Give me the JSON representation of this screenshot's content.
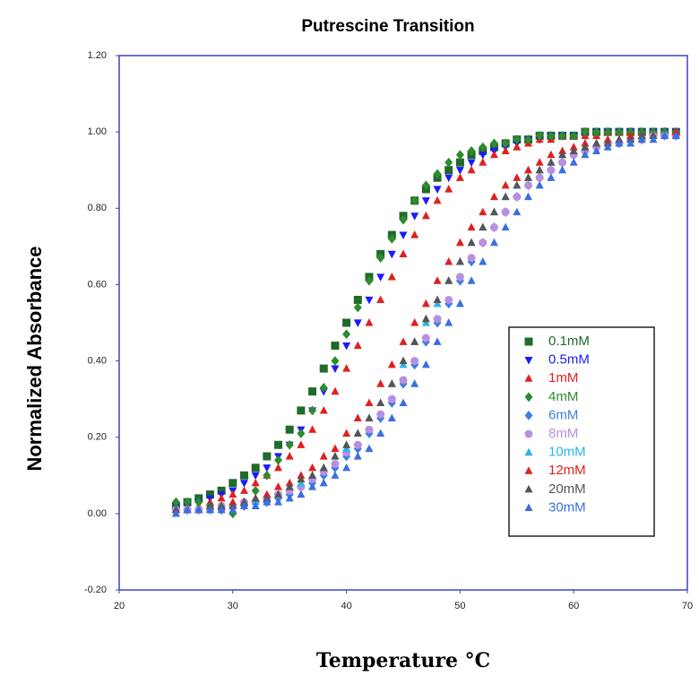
{
  "chart_data": {
    "type": "scatter",
    "title": "Putrescine Transition",
    "x_label": "Temperature °C",
    "y_label": "Normalized Absorbance",
    "xlim": [
      20,
      70
    ],
    "xticks": [
      20,
      30,
      40,
      50,
      60,
      70
    ],
    "ylim": [
      -0.2,
      1.2
    ],
    "yticks": [
      {
        "value": -0.2,
        "label": "-0.20"
      },
      {
        "value": 0,
        "label": "0.00"
      },
      {
        "value": 0.2,
        "label": "0.20"
      },
      {
        "value": 0.4,
        "label": "0.40"
      },
      {
        "value": 0.6,
        "label": "0.60"
      },
      {
        "value": 0.8,
        "label": "0.80"
      },
      {
        "value": 1.0,
        "label": "1.00"
      },
      {
        "value": 1.2,
        "label": "1.20"
      }
    ],
    "legend": "right",
    "x": [
      25,
      26,
      27,
      28,
      29,
      30,
      31,
      32,
      33,
      34,
      35,
      36,
      37,
      38,
      39,
      40,
      41,
      42,
      43,
      44,
      45,
      46,
      47,
      48,
      49,
      50,
      51,
      52,
      53,
      54,
      55,
      56,
      57,
      58,
      59,
      60,
      61,
      62,
      63,
      64,
      65,
      66,
      67,
      68,
      69
    ],
    "series": [
      {
        "name": "0.1mM",
        "color": "#1f6b2a",
        "marker": "square",
        "values": [
          0.02,
          0.03,
          0.04,
          0.05,
          0.06,
          0.08,
          0.1,
          0.12,
          0.15,
          0.18,
          0.22,
          0.27,
          0.32,
          0.38,
          0.44,
          0.5,
          0.56,
          0.62,
          0.68,
          0.73,
          0.78,
          0.82,
          0.85,
          0.88,
          0.9,
          0.92,
          0.94,
          0.95,
          0.96,
          0.97,
          0.98,
          0.98,
          0.99,
          0.99,
          0.99,
          0.99,
          1.0,
          1.0,
          1.0,
          1.0,
          1.0,
          1.0,
          1.0,
          1.0,
          1.0
        ]
      },
      {
        "name": "0.5mM",
        "color": "#1a1aff",
        "marker": "triangle-down",
        "values": [
          0.02,
          0.02,
          0.03,
          0.04,
          0.05,
          0.06,
          0.08,
          0.1,
          0.12,
          0.15,
          0.18,
          0.22,
          0.27,
          0.32,
          0.38,
          0.44,
          0.5,
          0.56,
          0.62,
          0.68,
          0.73,
          0.78,
          0.82,
          0.85,
          0.88,
          0.9,
          0.92,
          0.94,
          0.95,
          0.96,
          0.97,
          0.98,
          0.98,
          0.99,
          0.99,
          0.99,
          0.99,
          1.0,
          1.0,
          1.0,
          1.0,
          1.0,
          1.0,
          1.0,
          1.0
        ]
      },
      {
        "name": "1mM",
        "color": "#e02020",
        "marker": "triangle",
        "values": [
          0.01,
          0.02,
          0.02,
          0.03,
          0.04,
          0.05,
          0.06,
          0.08,
          0.1,
          0.12,
          0.15,
          0.18,
          0.22,
          0.27,
          0.32,
          0.38,
          0.44,
          0.5,
          0.56,
          0.62,
          0.68,
          0.73,
          0.78,
          0.82,
          0.85,
          0.88,
          0.9,
          0.92,
          0.94,
          0.95,
          0.96,
          0.97,
          0.98,
          0.98,
          0.99,
          0.99,
          0.99,
          0.99,
          1.0,
          1.0,
          1.0,
          1.0,
          1.0,
          1.0,
          1.0
        ]
      },
      {
        "name": "4mM",
        "color": "#2e8b2e",
        "marker": "diamond",
        "values": [
          0.03,
          0.03,
          0.03,
          0.02,
          0.01,
          0.0,
          0.03,
          0.06,
          0.1,
          0.14,
          0.18,
          0.21,
          0.27,
          0.33,
          0.4,
          0.47,
          0.54,
          0.61,
          0.67,
          0.72,
          0.77,
          0.82,
          0.86,
          0.89,
          0.92,
          0.94,
          0.95,
          0.96,
          0.97,
          0.97,
          0.98,
          0.98,
          0.99,
          0.99,
          0.99,
          0.99,
          1.0,
          1.0,
          1.0,
          1.0,
          1.0,
          1.0,
          1.0,
          1.0,
          1.0
        ]
      },
      {
        "name": "6mM",
        "color": "#3d7fe0",
        "marker": "diamond",
        "values": [
          0.01,
          0.01,
          0.01,
          0.01,
          0.01,
          0.02,
          0.02,
          0.03,
          0.03,
          0.04,
          0.05,
          0.07,
          0.08,
          0.1,
          0.12,
          0.15,
          0.17,
          0.21,
          0.25,
          0.29,
          0.34,
          0.39,
          0.45,
          0.5,
          0.55,
          0.61,
          0.66,
          0.71,
          0.75,
          0.79,
          0.83,
          0.86,
          0.88,
          0.9,
          0.92,
          0.94,
          0.95,
          0.96,
          0.97,
          0.97,
          0.98,
          0.98,
          0.99,
          0.99,
          0.99
        ]
      },
      {
        "name": "8mM",
        "color": "#b890e0",
        "marker": "circle",
        "values": [
          0.01,
          0.01,
          0.01,
          0.01,
          0.02,
          0.02,
          0.03,
          0.03,
          0.04,
          0.05,
          0.06,
          0.07,
          0.09,
          0.11,
          0.13,
          0.16,
          0.18,
          0.22,
          0.26,
          0.3,
          0.35,
          0.4,
          0.46,
          0.51,
          0.56,
          0.62,
          0.67,
          0.71,
          0.75,
          0.79,
          0.83,
          0.86,
          0.88,
          0.9,
          0.92,
          0.94,
          0.95,
          0.96,
          0.97,
          0.97,
          0.98,
          0.98,
          0.99,
          0.99,
          0.99
        ]
      },
      {
        "name": "10mM",
        "color": "#29b6e8",
        "marker": "triangle",
        "values": [
          0.01,
          0.01,
          0.01,
          0.01,
          0.02,
          0.02,
          0.03,
          0.03,
          0.04,
          0.05,
          0.07,
          0.08,
          0.1,
          0.12,
          0.15,
          0.17,
          0.21,
          0.25,
          0.29,
          0.34,
          0.39,
          0.45,
          0.5,
          0.55,
          0.61,
          0.66,
          0.71,
          0.75,
          0.79,
          0.83,
          0.86,
          0.88,
          0.9,
          0.92,
          0.94,
          0.95,
          0.96,
          0.97,
          0.97,
          0.98,
          0.98,
          0.99,
          0.99,
          0.99,
          0.99
        ]
      },
      {
        "name": "12mM",
        "color": "#e02020",
        "marker": "triangle",
        "values": [
          0.01,
          0.01,
          0.01,
          0.02,
          0.02,
          0.03,
          0.03,
          0.04,
          0.05,
          0.07,
          0.08,
          0.1,
          0.12,
          0.15,
          0.17,
          0.21,
          0.25,
          0.29,
          0.34,
          0.39,
          0.45,
          0.5,
          0.55,
          0.61,
          0.66,
          0.71,
          0.75,
          0.79,
          0.83,
          0.86,
          0.88,
          0.9,
          0.92,
          0.94,
          0.95,
          0.96,
          0.97,
          0.97,
          0.98,
          0.98,
          0.99,
          0.99,
          0.99,
          0.99,
          1.0
        ]
      },
      {
        "name": "20mM",
        "color": "#555555",
        "marker": "triangle",
        "values": [
          0.01,
          0.01,
          0.01,
          0.02,
          0.02,
          0.02,
          0.03,
          0.04,
          0.04,
          0.05,
          0.07,
          0.09,
          0.1,
          0.12,
          0.15,
          0.18,
          0.21,
          0.25,
          0.29,
          0.34,
          0.4,
          0.45,
          0.51,
          0.56,
          0.61,
          0.66,
          0.71,
          0.75,
          0.79,
          0.83,
          0.86,
          0.88,
          0.9,
          0.92,
          0.94,
          0.95,
          0.96,
          0.97,
          0.97,
          0.98,
          0.98,
          0.99,
          0.99,
          0.99,
          0.99
        ]
      },
      {
        "name": "30mM",
        "color": "#3a6fe0",
        "marker": "triangle",
        "values": [
          0.0,
          0.01,
          0.01,
          0.01,
          0.01,
          0.01,
          0.02,
          0.02,
          0.03,
          0.03,
          0.04,
          0.05,
          0.07,
          0.08,
          0.1,
          0.12,
          0.15,
          0.17,
          0.21,
          0.25,
          0.29,
          0.34,
          0.39,
          0.45,
          0.5,
          0.55,
          0.61,
          0.66,
          0.71,
          0.75,
          0.79,
          0.83,
          0.86,
          0.88,
          0.9,
          0.92,
          0.94,
          0.95,
          0.96,
          0.97,
          0.97,
          0.98,
          0.98,
          0.99,
          0.99
        ]
      }
    ]
  }
}
